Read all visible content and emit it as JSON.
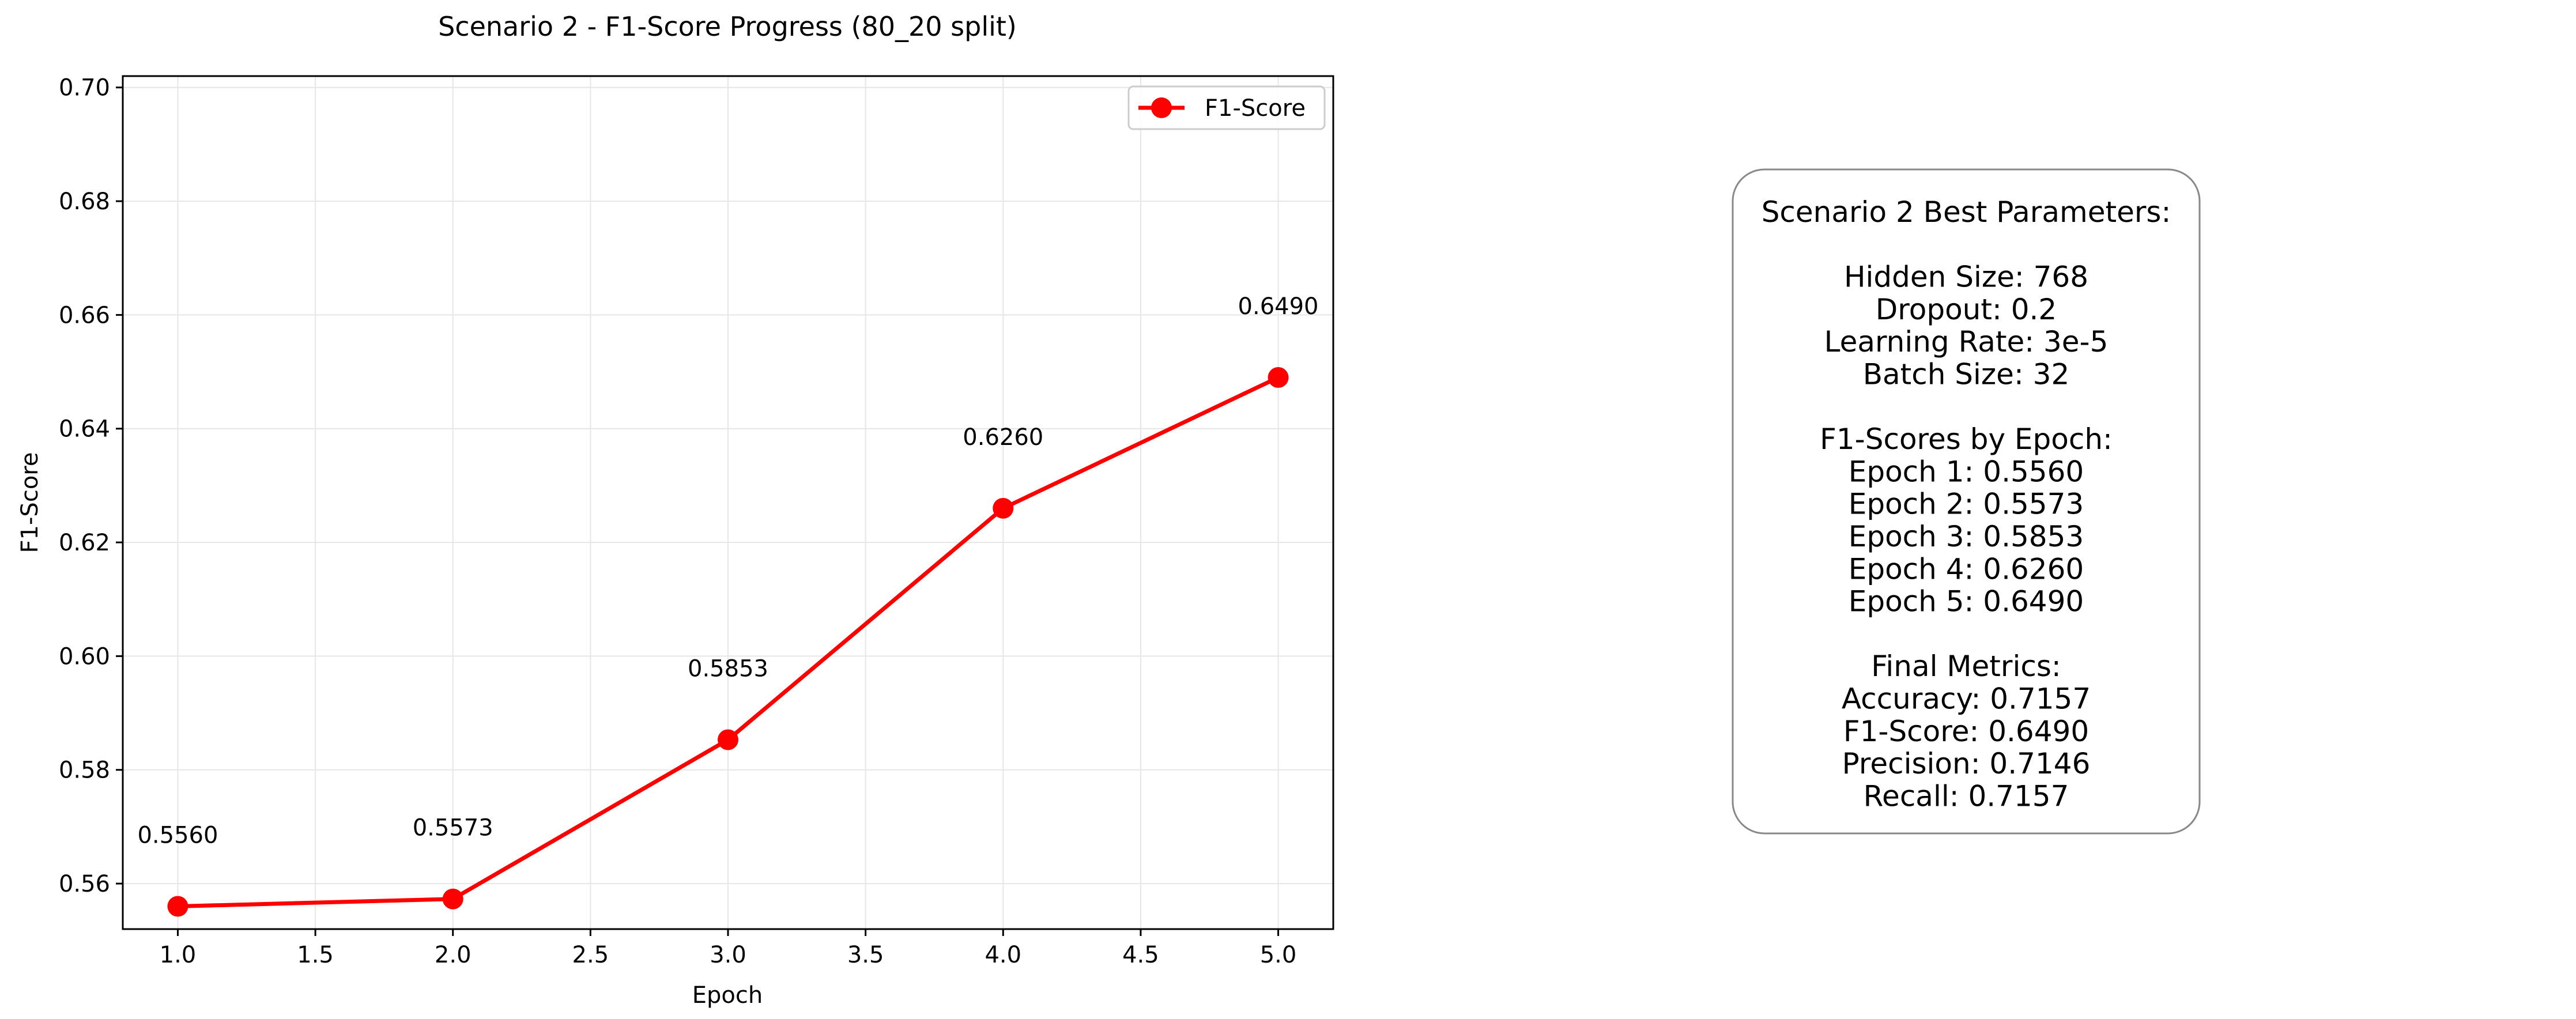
{
  "chart_data": {
    "type": "line",
    "title": "Scenario 2 - F1-Score Progress (80_20 split)",
    "xlabel": "Epoch",
    "ylabel": "F1-Score",
    "xlim": [
      0.8,
      5.2
    ],
    "ylim": [
      0.552,
      0.702
    ],
    "xticks": [
      "1.0",
      "1.5",
      "2.0",
      "2.5",
      "3.0",
      "3.5",
      "4.0",
      "4.5",
      "5.0"
    ],
    "yticks": [
      "0.56",
      "0.58",
      "0.60",
      "0.62",
      "0.64",
      "0.66",
      "0.68",
      "0.70"
    ],
    "grid": true,
    "legend_position": "top-right",
    "series": [
      {
        "name": "F1-Score",
        "color": "#ff0000",
        "x": [
          1,
          2,
          3,
          4,
          5
        ],
        "y": [
          0.556,
          0.5573,
          0.5853,
          0.626,
          0.649
        ],
        "labels": [
          "0.5560",
          "0.5573",
          "0.5853",
          "0.6260",
          "0.6490"
        ]
      }
    ]
  },
  "params_box": {
    "lines": [
      "Scenario 2 Best Parameters:",
      "",
      "Hidden Size: 768",
      "Dropout: 0.2",
      "Learning Rate: 3e-5",
      "Batch Size: 32",
      "",
      "F1-Scores by Epoch:",
      "Epoch 1: 0.5560",
      "Epoch 2: 0.5573",
      "Epoch 3: 0.5853",
      "Epoch 4: 0.6260",
      "Epoch 5: 0.6490",
      "",
      "Final Metrics:",
      "Accuracy: 0.7157",
      "F1-Score: 0.6490",
      "Precision: 0.7146",
      "Recall: 0.7157"
    ]
  }
}
